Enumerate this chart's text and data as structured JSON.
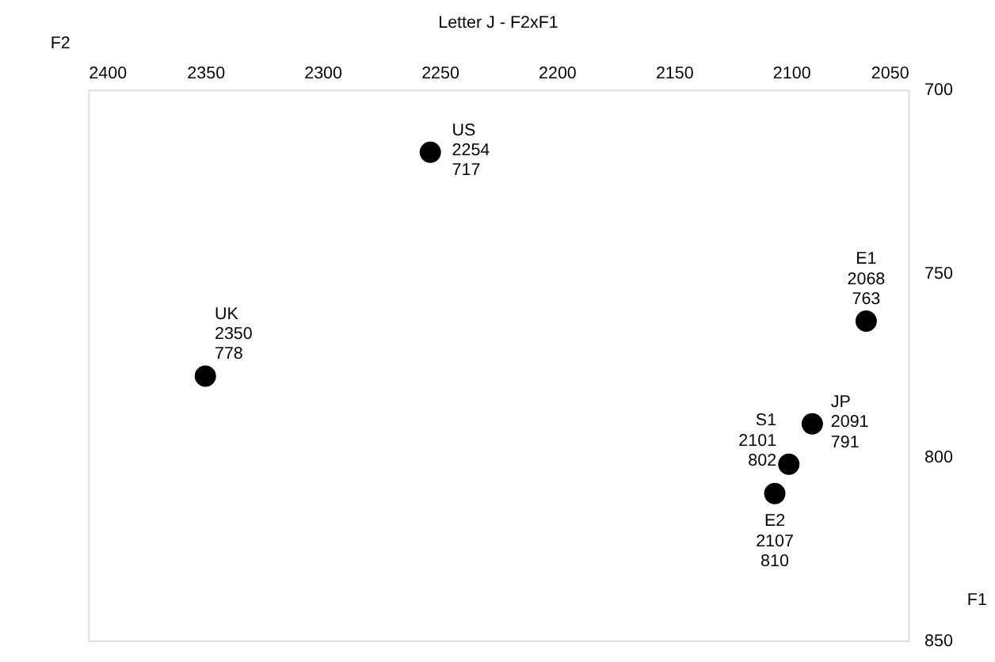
{
  "chart_data": {
    "type": "scatter",
    "title": "Letter J - F2xF1",
    "xlabel": "F2",
    "ylabel": "F1",
    "series": [
      {
        "name": "US",
        "color": "#000000",
        "x": [
          2254
        ],
        "values": [
          717
        ]
      },
      {
        "name": "E1",
        "color": "#000000",
        "x": [
          2068
        ],
        "values": [
          763
        ]
      },
      {
        "name": "UK",
        "color": "#000000",
        "x": [
          2350
        ],
        "values": [
          778
        ]
      },
      {
        "name": "S1",
        "color": "#000000",
        "x": [
          2101
        ],
        "values": [
          802
        ]
      },
      {
        "name": "JP",
        "color": "#000000",
        "x": [
          2091
        ],
        "values": [
          791
        ]
      },
      {
        "name": "E2",
        "color": "#000000",
        "x": [
          2107
        ],
        "values": [
          810
        ]
      }
    ],
    "annotations": [
      {
        "text": "2254",
        "x": 2254,
        "y": 717
      },
      {
        "text": "2068",
        "x": 2068,
        "y": 763
      },
      {
        "text": "2350",
        "x": 2350,
        "y": 778
      },
      {
        "text": "2101",
        "x": 2101,
        "y": 802
      },
      {
        "text": "2091",
        "x": 2091,
        "y": 791
      },
      {
        "text": "2107",
        "x": 2107,
        "y": 810
      }
    ],
    "xlim": [
      2400,
      2050
    ],
    "xticks": [
      2400,
      2350,
      2300,
      2250,
      2200,
      2150,
      2100,
      2050
    ],
    "ylim": [
      850,
      700
    ],
    "yticks": [
      700,
      750,
      800,
      850
    ],
    "data_labels": true,
    "marker": "circle",
    "grid": false,
    "legend": false
  }
}
